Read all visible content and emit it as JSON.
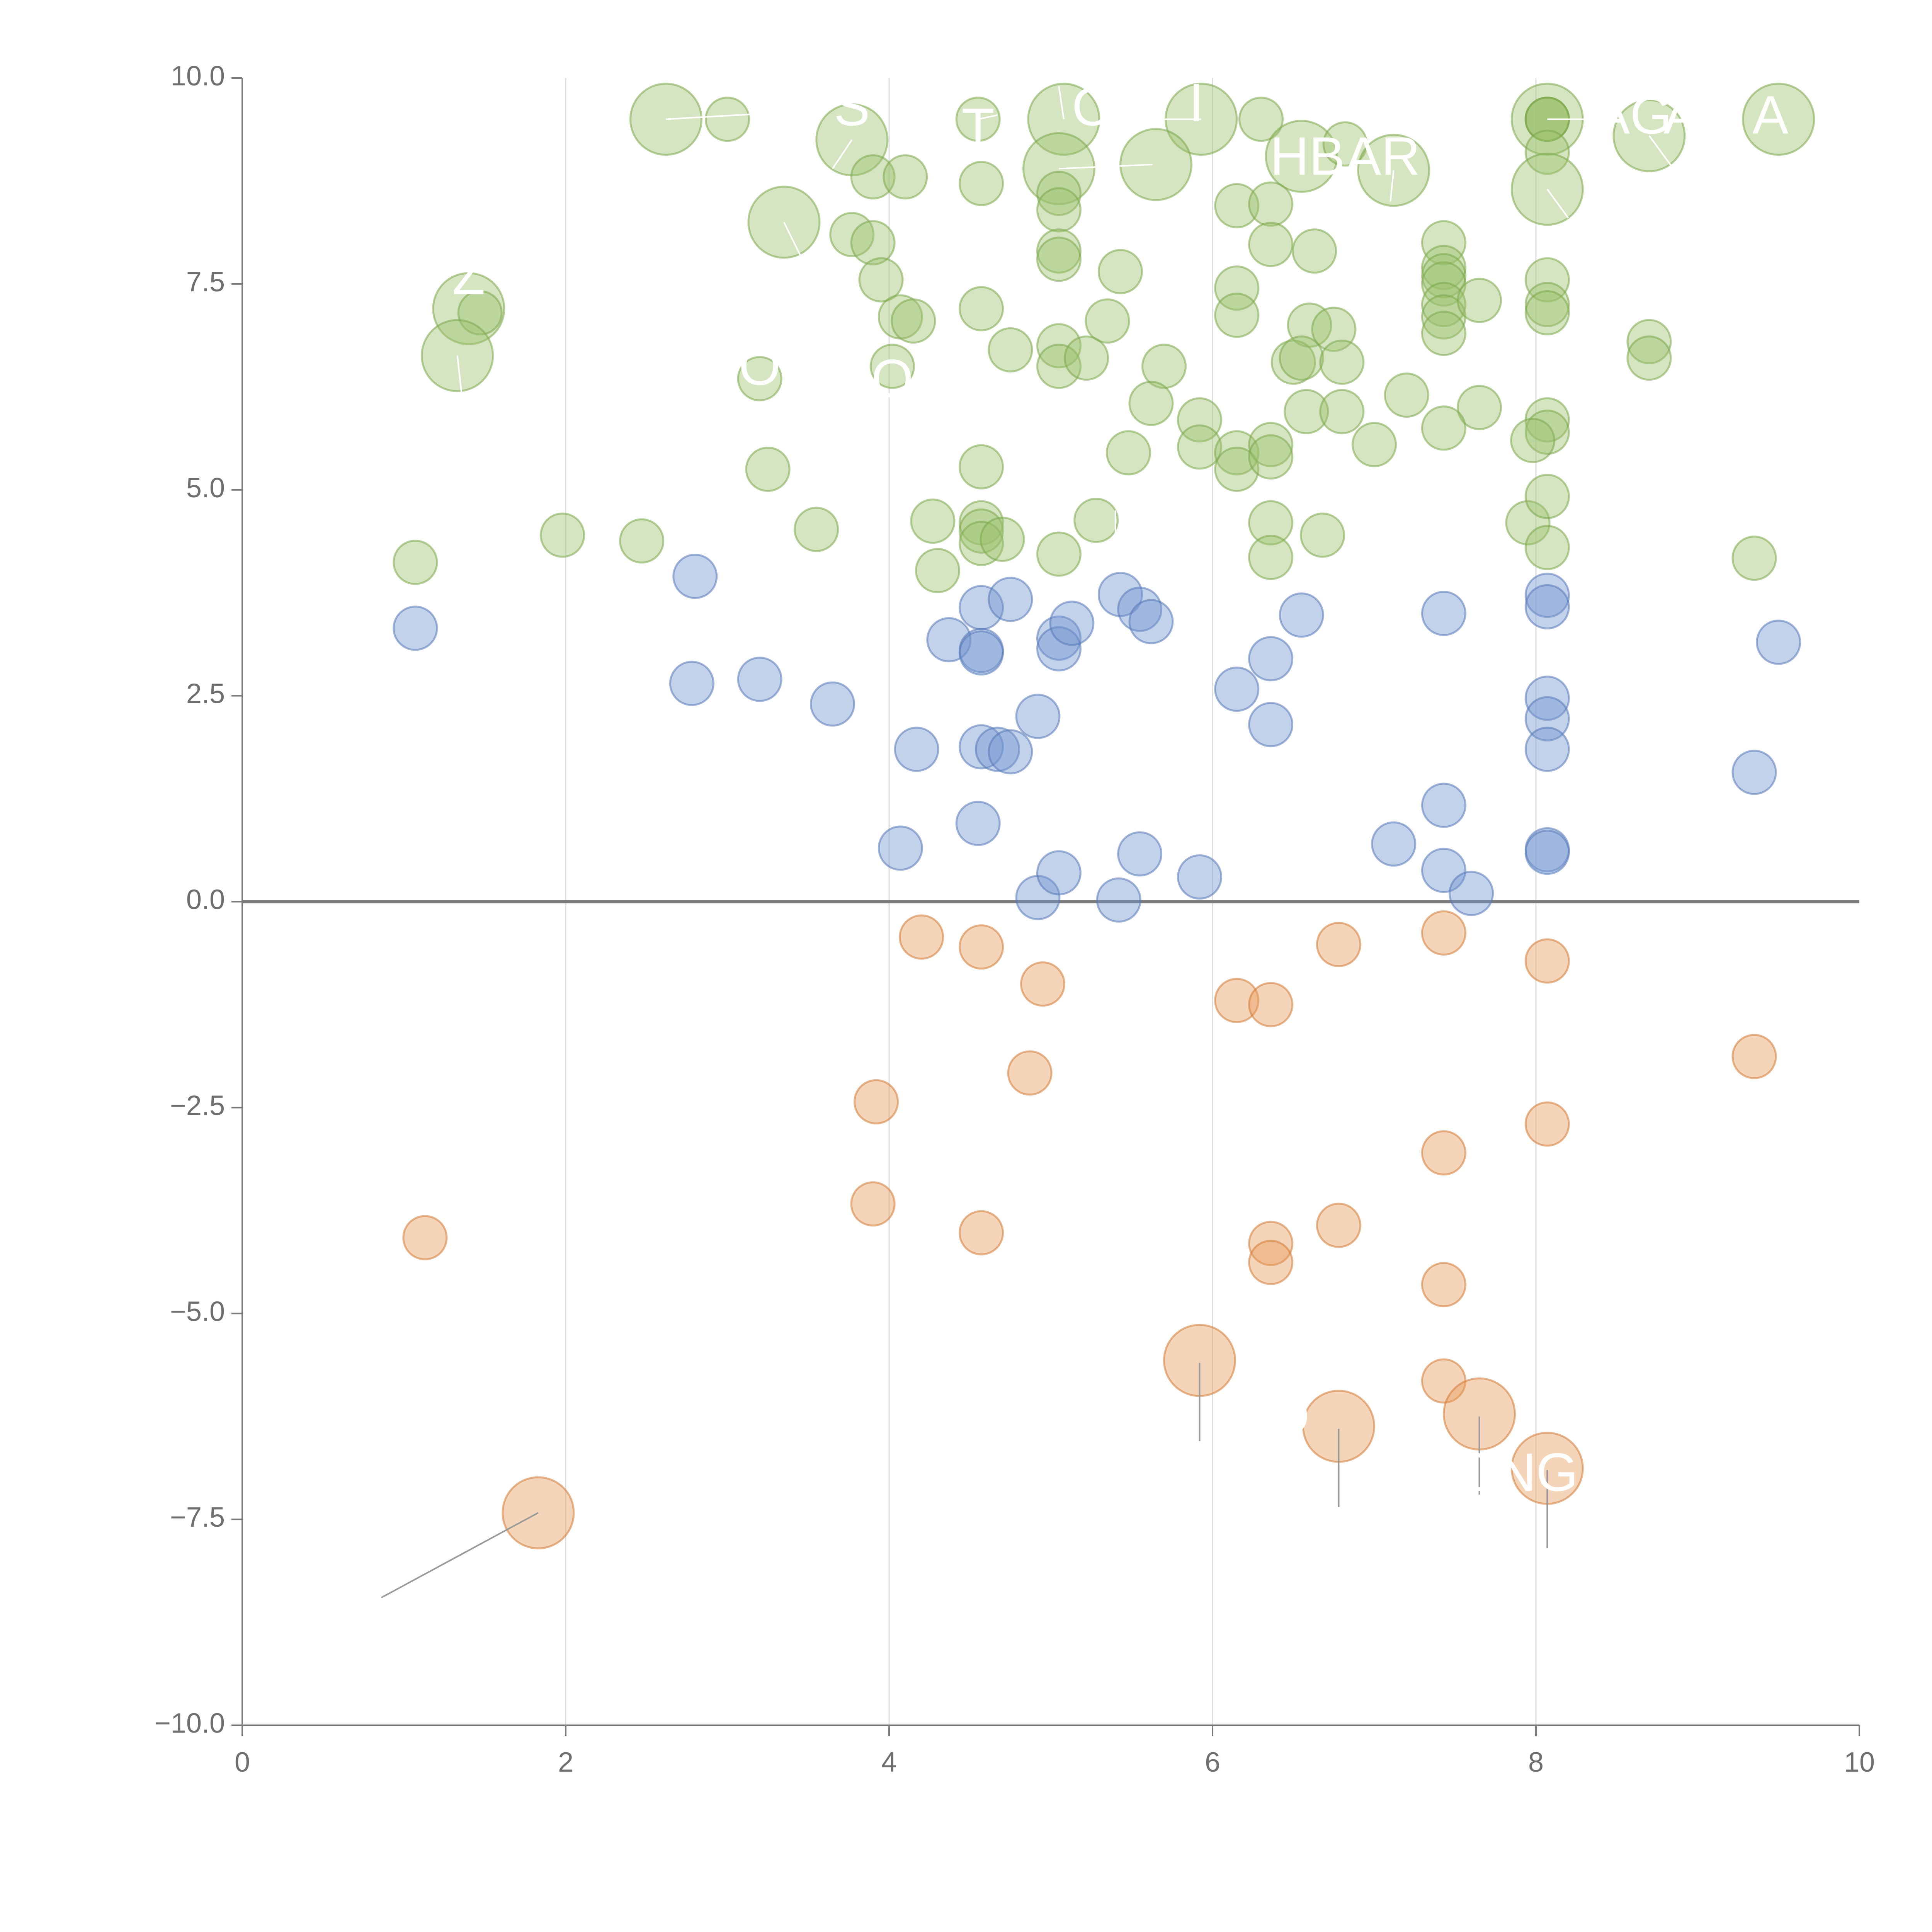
{
  "chart_data": {
    "type": "scatter",
    "title": "",
    "xlabel": "",
    "ylabel": "",
    "xlim": [
      0,
      10
    ],
    "ylim": [
      -10,
      10
    ],
    "x_ticks": [
      0,
      2,
      4,
      6,
      8,
      10
    ],
    "y_ticks": [
      -10,
      -7.5,
      -5,
      -2.5,
      0,
      2.5,
      5,
      7.5,
      10
    ],
    "x_tick_labels": [
      "0",
      "2",
      "4",
      "6",
      "8",
      "10"
    ],
    "y_tick_labels": [
      "−10.0",
      "−7.5",
      "−5.0",
      "−2.5",
      "0.0",
      "2.5",
      "5.0",
      "7.5",
      "10.0"
    ],
    "grid": "vertical",
    "reference_line_y": 0,
    "colors": {
      "green": "#9bc26b",
      "green_stroke": "#7aa84a",
      "blue": "#6f93cf",
      "blue_stroke": "#5579b8",
      "orange": "#e89a5a",
      "orange_stroke": "#d17a35",
      "leader_light": "#ffffff",
      "leader_dark": "#9a9a9a"
    },
    "series": [
      {
        "name": "high",
        "color": "green",
        "points": [
          [
            2.62,
            9.5,
            1
          ],
          [
            3.0,
            9.5,
            0
          ],
          [
            3.77,
            9.25,
            1
          ],
          [
            4.55,
            9.5,
            0
          ],
          [
            5.08,
            9.5,
            1
          ],
          [
            5.93,
            9.5,
            1
          ],
          [
            6.3,
            9.5,
            0
          ],
          [
            8.07,
            9.5,
            1
          ],
          [
            8.07,
            9.5,
            0
          ],
          [
            8.07,
            9.5,
            0
          ],
          [
            8.07,
            9.5,
            0
          ],
          [
            8.7,
            9.3,
            1
          ],
          [
            9.5,
            9.5,
            1
          ],
          [
            3.9,
            8.8,
            0
          ],
          [
            4.1,
            8.8,
            0
          ],
          [
            4.57,
            8.72,
            0
          ],
          [
            5.05,
            8.9,
            1
          ],
          [
            5.65,
            8.95,
            1
          ],
          [
            6.55,
            9.05,
            1
          ],
          [
            6.82,
            9.2,
            0
          ],
          [
            7.12,
            8.88,
            1
          ],
          [
            8.07,
            9.1,
            0
          ],
          [
            8.07,
            8.65,
            1
          ],
          [
            5.05,
            8.6,
            0
          ],
          [
            5.05,
            8.4,
            0
          ],
          [
            3.35,
            8.25,
            1
          ],
          [
            3.77,
            8.1,
            0
          ],
          [
            3.9,
            8.0,
            0
          ],
          [
            6.15,
            8.45,
            0
          ],
          [
            6.36,
            8.47,
            0
          ],
          [
            6.36,
            7.98,
            0
          ],
          [
            6.63,
            7.9,
            0
          ],
          [
            7.43,
            8.0,
            0
          ],
          [
            5.05,
            7.9,
            0
          ],
          [
            5.05,
            7.8,
            0
          ],
          [
            3.95,
            7.55,
            0
          ],
          [
            5.43,
            7.65,
            0
          ],
          [
            7.43,
            7.7,
            0
          ],
          [
            7.43,
            7.6,
            0
          ],
          [
            7.43,
            7.5,
            0
          ],
          [
            8.07,
            7.55,
            0
          ],
          [
            1.4,
            7.2,
            1
          ],
          [
            1.47,
            7.15,
            0
          ],
          [
            4.07,
            7.1,
            0
          ],
          [
            4.15,
            7.05,
            0
          ],
          [
            4.57,
            7.2,
            0
          ],
          [
            5.35,
            7.05,
            0
          ],
          [
            6.15,
            7.45,
            0
          ],
          [
            6.15,
            7.12,
            0
          ],
          [
            7.43,
            7.25,
            0
          ],
          [
            7.43,
            7.1,
            0
          ],
          [
            7.65,
            7.3,
            0
          ],
          [
            8.07,
            7.25,
            0
          ],
          [
            8.07,
            7.15,
            0
          ],
          [
            1.33,
            6.63,
            1
          ],
          [
            4.75,
            6.7,
            0
          ],
          [
            5.05,
            6.75,
            0
          ],
          [
            6.6,
            7.0,
            0
          ],
          [
            6.75,
            6.95,
            0
          ],
          [
            7.43,
            6.9,
            0
          ],
          [
            8.7,
            6.8,
            0
          ],
          [
            4.02,
            6.5,
            0
          ],
          [
            5.05,
            6.5,
            0
          ],
          [
            5.22,
            6.6,
            0
          ],
          [
            5.7,
            6.5,
            0
          ],
          [
            6.5,
            6.55,
            0
          ],
          [
            6.55,
            6.6,
            0
          ],
          [
            6.8,
            6.55,
            0
          ],
          [
            8.7,
            6.6,
            0
          ],
          [
            3.2,
            6.35,
            0
          ],
          [
            5.62,
            6.05,
            0
          ],
          [
            6.58,
            5.95,
            0
          ],
          [
            6.8,
            5.95,
            0
          ],
          [
            7.2,
            6.15,
            0
          ],
          [
            7.65,
            6.0,
            0
          ],
          [
            5.92,
            5.85,
            0
          ],
          [
            7.43,
            5.75,
            0
          ],
          [
            8.07,
            5.85,
            0
          ],
          [
            8.07,
            5.7,
            0
          ],
          [
            7.98,
            5.6,
            0
          ],
          [
            5.92,
            5.52,
            0
          ],
          [
            6.15,
            5.45,
            0
          ],
          [
            6.15,
            5.25,
            0
          ],
          [
            6.36,
            5.55,
            0
          ],
          [
            6.36,
            5.4,
            0
          ],
          [
            7.0,
            5.55,
            0
          ],
          [
            3.25,
            5.25,
            0
          ],
          [
            4.57,
            5.28,
            0
          ],
          [
            5.48,
            5.45,
            0
          ],
          [
            1.07,
            4.12,
            0
          ],
          [
            1.98,
            4.45,
            0
          ],
          [
            2.47,
            4.38,
            0
          ],
          [
            3.55,
            4.52,
            0
          ],
          [
            4.27,
            4.62,
            0
          ],
          [
            4.3,
            4.02,
            0
          ],
          [
            4.57,
            4.6,
            0
          ],
          [
            4.57,
            4.5,
            0
          ],
          [
            4.57,
            4.35,
            0
          ],
          [
            4.7,
            4.4,
            0
          ],
          [
            5.05,
            4.22,
            0
          ],
          [
            5.28,
            4.63,
            0
          ],
          [
            6.36,
            4.6,
            0
          ],
          [
            6.36,
            4.18,
            0
          ],
          [
            6.68,
            4.45,
            0
          ],
          [
            7.95,
            4.6,
            0
          ],
          [
            8.07,
            4.92,
            0
          ],
          [
            8.07,
            4.3,
            0
          ],
          [
            9.35,
            4.17,
            0
          ]
        ]
      },
      {
        "name": "mid",
        "color": "blue",
        "points": [
          [
            1.07,
            3.32,
            0
          ],
          [
            2.8,
            3.95,
            0
          ],
          [
            2.78,
            2.65,
            0
          ],
          [
            3.2,
            2.7,
            0
          ],
          [
            3.65,
            2.4,
            0
          ],
          [
            4.07,
            0.65,
            0
          ],
          [
            4.17,
            1.85,
            0
          ],
          [
            4.37,
            3.18,
            0
          ],
          [
            4.57,
            3.57,
            0
          ],
          [
            4.57,
            3.05,
            0
          ],
          [
            4.57,
            3.02,
            0
          ],
          [
            4.57,
            1.88,
            0
          ],
          [
            4.55,
            0.95,
            0
          ],
          [
            4.67,
            1.85,
            0
          ],
          [
            4.75,
            1.82,
            0
          ],
          [
            4.75,
            3.67,
            0
          ],
          [
            4.92,
            2.25,
            0
          ],
          [
            4.92,
            0.05,
            0
          ],
          [
            5.05,
            3.2,
            0
          ],
          [
            5.05,
            3.07,
            0
          ],
          [
            5.05,
            0.35,
            0
          ],
          [
            5.13,
            3.38,
            0
          ],
          [
            5.43,
            3.73,
            0
          ],
          [
            5.55,
            3.55,
            0
          ],
          [
            5.62,
            3.4,
            0
          ],
          [
            5.42,
            0.02,
            0
          ],
          [
            5.55,
            0.58,
            0
          ],
          [
            5.92,
            0.3,
            0
          ],
          [
            6.15,
            2.58,
            0
          ],
          [
            6.36,
            2.95,
            0
          ],
          [
            6.36,
            2.15,
            0
          ],
          [
            6.55,
            3.48,
            0
          ],
          [
            7.12,
            0.7,
            0
          ],
          [
            7.43,
            3.5,
            0
          ],
          [
            7.43,
            1.17,
            0
          ],
          [
            7.43,
            0.38,
            0
          ],
          [
            7.6,
            0.1,
            0
          ],
          [
            8.07,
            3.72,
            0
          ],
          [
            8.07,
            3.58,
            0
          ],
          [
            8.07,
            2.47,
            0
          ],
          [
            8.07,
            2.22,
            0
          ],
          [
            8.07,
            1.85,
            0
          ],
          [
            8.07,
            0.63,
            0
          ],
          [
            8.07,
            0.6,
            0
          ],
          [
            9.35,
            1.57,
            0
          ],
          [
            9.5,
            3.15,
            0
          ]
        ]
      },
      {
        "name": "low",
        "color": "orange",
        "points": [
          [
            1.13,
            -4.08,
            0
          ],
          [
            1.83,
            -7.42,
            1
          ],
          [
            3.9,
            -3.67,
            0
          ],
          [
            3.92,
            -2.43,
            0
          ],
          [
            4.2,
            -0.43,
            0
          ],
          [
            4.57,
            -0.55,
            0
          ],
          [
            4.57,
            -4.02,
            0
          ],
          [
            4.87,
            -2.08,
            0
          ],
          [
            4.95,
            -1.0,
            0
          ],
          [
            5.92,
            -5.57,
            1
          ],
          [
            6.15,
            -1.2,
            0
          ],
          [
            6.36,
            -1.25,
            0
          ],
          [
            6.36,
            -4.15,
            0
          ],
          [
            6.36,
            -4.38,
            0
          ],
          [
            6.78,
            -0.52,
            0
          ],
          [
            6.78,
            -3.93,
            0
          ],
          [
            6.78,
            -6.37,
            1
          ],
          [
            7.43,
            -0.38,
            0
          ],
          [
            7.43,
            -3.05,
            0
          ],
          [
            7.43,
            -4.65,
            0
          ],
          [
            7.43,
            -5.82,
            0
          ],
          [
            7.65,
            -6.22,
            1
          ],
          [
            8.07,
            -0.72,
            0
          ],
          [
            8.07,
            -2.7,
            0
          ],
          [
            8.07,
            -6.88,
            1
          ],
          [
            9.35,
            -1.88,
            0
          ]
        ]
      }
    ],
    "annotations": [
      {
        "text": "S",
        "x": 3.77,
        "y": 9.6
      },
      {
        "text": "T",
        "x": 4.55,
        "y": 9.35
      },
      {
        "text": "C",
        "x": 5.25,
        "y": 9.6
      },
      {
        "text": "I",
        "x": 5.9,
        "y": 9.65
      },
      {
        "text": "HBAR",
        "x": 6.82,
        "y": 9.0
      },
      {
        "text": "AG",
        "x": 8.6,
        "y": 9.5
      },
      {
        "text": "A",
        "x": 8.9,
        "y": 9.5
      },
      {
        "text": "A",
        "x": 9.45,
        "y": 9.5
      },
      {
        "text": "Z",
        "x": 1.4,
        "y": 7.55
      },
      {
        "text": "O",
        "x": 3.2,
        "y": 6.45
      },
      {
        "text": "O",
        "x": 4.02,
        "y": 6.3
      },
      {
        "text": "D",
        "x": 6.48,
        "y": -6.3
      },
      {
        "text": "ONG",
        "x": 7.88,
        "y": -6.98
      }
    ],
    "leader_lines": [
      {
        "x1": 2.62,
        "y1": 9.5,
        "x2": 3.15,
        "y2": 9.56,
        "color": "leader_light"
      },
      {
        "x1": 3.77,
        "y1": 9.25,
        "x2": 3.65,
        "y2": 8.9,
        "color": "leader_light"
      },
      {
        "x1": 4.55,
        "y1": 9.5,
        "x2": 4.67,
        "y2": 9.55,
        "color": "leader_light"
      },
      {
        "x1": 5.08,
        "y1": 9.5,
        "x2": 5.05,
        "y2": 9.9,
        "color": "leader_light"
      },
      {
        "x1": 5.05,
        "y1": 8.9,
        "x2": 5.63,
        "y2": 8.95,
        "color": "leader_light"
      },
      {
        "x1": 5.93,
        "y1": 9.5,
        "x2": 5.65,
        "y2": 9.5,
        "color": "leader_light"
      },
      {
        "x1": 7.12,
        "y1": 8.88,
        "x2": 7.1,
        "y2": 8.5,
        "color": "leader_light"
      },
      {
        "x1": 8.07,
        "y1": 9.5,
        "x2": 8.4,
        "y2": 9.5,
        "color": "leader_light"
      },
      {
        "x1": 8.07,
        "y1": 8.65,
        "x2": 8.2,
        "y2": 8.3,
        "color": "leader_light"
      },
      {
        "x1": 8.7,
        "y1": 9.3,
        "x2": 8.85,
        "y2": 8.9,
        "color": "leader_light"
      },
      {
        "x1": 3.35,
        "y1": 8.25,
        "x2": 3.45,
        "y2": 7.85,
        "color": "leader_light"
      },
      {
        "x1": 1.33,
        "y1": 6.63,
        "x2": 1.36,
        "y2": 6.1,
        "color": "leader_light"
      },
      {
        "x1": 5.4,
        "y1": 4.75,
        "x2": 5.4,
        "y2": 4.15,
        "color": "leader_light"
      },
      {
        "x1": 1.83,
        "y1": -7.42,
        "x2": 0.86,
        "y2": -8.45,
        "color": "leader_dark"
      },
      {
        "x1": 5.92,
        "y1": -5.6,
        "x2": 5.92,
        "y2": -6.55,
        "color": "leader_dark"
      },
      {
        "x1": 6.78,
        "y1": -6.4,
        "x2": 6.78,
        "y2": -7.35,
        "color": "leader_dark"
      },
      {
        "x1": 7.65,
        "y1": -6.25,
        "x2": 7.65,
        "y2": -7.2,
        "color": "leader_dark"
      },
      {
        "x1": 8.07,
        "y1": -6.9,
        "x2": 8.07,
        "y2": -7.85,
        "color": "leader_dark"
      }
    ]
  }
}
